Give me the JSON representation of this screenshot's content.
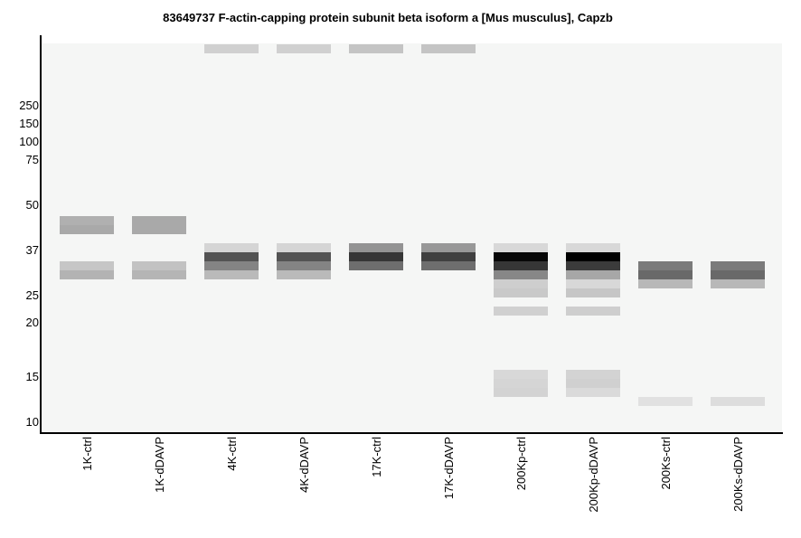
{
  "chart_data": {
    "type": "heatmap",
    "title": "83649737 F-actin-capping protein subunit beta isoform a [Mus musculus], Capzb",
    "xlabel": "",
    "ylabel": "",
    "y_ticks": [
      "250",
      "150",
      "100",
      "75",
      "50",
      "37",
      "25",
      "20",
      "15",
      "10"
    ],
    "lanes": [
      "1K-ctrl",
      "1K-dDAVP",
      "4K-ctrl",
      "4K-dDAVP",
      "17K-ctrl",
      "17K-dDAVP",
      "200Kp-ctrl",
      "200Kp-dDAVP",
      "200Ks-ctrl",
      "200Ks-dDAVP"
    ],
    "background_color": "#f5f6f5",
    "bands": [
      {
        "lane": "1K-ctrl",
        "marker": "250+",
        "intensity": 0.0
      },
      {
        "lane": "1K-ctrl",
        "marker": "~45",
        "intensity": 0.28
      },
      {
        "lane": "1K-ctrl",
        "marker": "~42",
        "intensity": 0.31
      },
      {
        "lane": "1K-ctrl",
        "marker": "~33",
        "intensity": 0.19
      },
      {
        "lane": "1K-ctrl",
        "marker": "~31",
        "intensity": 0.27
      },
      {
        "lane": "1K-dDAVP",
        "marker": "~45",
        "intensity": 0.31
      },
      {
        "lane": "1K-dDAVP",
        "marker": "~42",
        "intensity": 0.31
      },
      {
        "lane": "1K-dDAVP",
        "marker": "~33",
        "intensity": 0.21
      },
      {
        "lane": "1K-dDAVP",
        "marker": "~31",
        "intensity": 0.26
      },
      {
        "lane": "4K-ctrl",
        "marker": "top",
        "intensity": 0.15
      },
      {
        "lane": "4K-ctrl",
        "marker": "~37",
        "intensity": 0.13
      },
      {
        "lane": "4K-ctrl",
        "marker": "~35",
        "intensity": 0.66
      },
      {
        "lane": "4K-ctrl",
        "marker": "~33",
        "intensity": 0.46
      },
      {
        "lane": "4K-ctrl",
        "marker": "~31",
        "intensity": 0.24
      },
      {
        "lane": "4K-dDAVP",
        "marker": "top",
        "intensity": 0.15
      },
      {
        "lane": "4K-dDAVP",
        "marker": "~37",
        "intensity": 0.13
      },
      {
        "lane": "4K-dDAVP",
        "marker": "~35",
        "intensity": 0.66
      },
      {
        "lane": "4K-dDAVP",
        "marker": "~33",
        "intensity": 0.46
      },
      {
        "lane": "4K-dDAVP",
        "marker": "~31",
        "intensity": 0.24
      },
      {
        "lane": "17K-ctrl",
        "marker": "top",
        "intensity": 0.2
      },
      {
        "lane": "17K-ctrl",
        "marker": "~37",
        "intensity": 0.4
      },
      {
        "lane": "17K-ctrl",
        "marker": "~35",
        "intensity": 0.78
      },
      {
        "lane": "17K-ctrl",
        "marker": "~33",
        "intensity": 0.55
      },
      {
        "lane": "17K-dDAVP",
        "marker": "top",
        "intensity": 0.2
      },
      {
        "lane": "17K-dDAVP",
        "marker": "~37",
        "intensity": 0.38
      },
      {
        "lane": "17K-dDAVP",
        "marker": "~35",
        "intensity": 0.74
      },
      {
        "lane": "17K-dDAVP",
        "marker": "~33",
        "intensity": 0.55
      },
      {
        "lane": "200Kp-ctrl",
        "marker": "~37",
        "intensity": 0.12
      },
      {
        "lane": "200Kp-ctrl",
        "marker": "~35",
        "intensity": 0.97
      },
      {
        "lane": "200Kp-ctrl",
        "marker": "~33",
        "intensity": 0.78
      },
      {
        "lane": "200Kp-ctrl",
        "marker": "~31",
        "intensity": 0.45
      },
      {
        "lane": "200Kp-ctrl",
        "marker": "~29",
        "intensity": 0.16
      },
      {
        "lane": "200Kp-ctrl",
        "marker": "~27",
        "intensity": 0.18
      },
      {
        "lane": "200Kp-ctrl",
        "marker": "~22",
        "intensity": 0.15
      },
      {
        "lane": "200Kp-ctrl",
        "marker": "~15",
        "intensity": 0.12
      },
      {
        "lane": "200Kp-ctrl",
        "marker": "~14",
        "intensity": 0.13
      },
      {
        "lane": "200Kp-ctrl",
        "marker": "~13",
        "intensity": 0.14
      },
      {
        "lane": "200Kp-dDAVP",
        "marker": "~37",
        "intensity": 0.12
      },
      {
        "lane": "200Kp-dDAVP",
        "marker": "~35",
        "intensity": 1.0
      },
      {
        "lane": "200Kp-dDAVP",
        "marker": "~33",
        "intensity": 0.76
      },
      {
        "lane": "200Kp-dDAVP",
        "marker": "~31",
        "intensity": 0.32
      },
      {
        "lane": "200Kp-dDAVP",
        "marker": "~29",
        "intensity": 0.12
      },
      {
        "lane": "200Kp-dDAVP",
        "marker": "~27",
        "intensity": 0.19
      },
      {
        "lane": "200Kp-dDAVP",
        "marker": "~22",
        "intensity": 0.16
      },
      {
        "lane": "200Kp-dDAVP",
        "marker": "~15",
        "intensity": 0.14
      },
      {
        "lane": "200Kp-dDAVP",
        "marker": "~14",
        "intensity": 0.15
      },
      {
        "lane": "200Kp-dDAVP",
        "marker": "~13",
        "intensity": 0.11
      },
      {
        "lane": "200Ks-ctrl",
        "marker": "~33",
        "intensity": 0.5
      },
      {
        "lane": "200Ks-ctrl",
        "marker": "~31",
        "intensity": 0.57
      },
      {
        "lane": "200Ks-ctrl",
        "marker": "~29",
        "intensity": 0.25
      },
      {
        "lane": "200Ks-ctrl",
        "marker": "~12",
        "intensity": 0.08
      },
      {
        "lane": "200Ks-dDAVP",
        "marker": "~33",
        "intensity": 0.5
      },
      {
        "lane": "200Ks-dDAVP",
        "marker": "~31",
        "intensity": 0.57
      },
      {
        "lane": "200Ks-dDAVP",
        "marker": "~29",
        "intensity": 0.25
      },
      {
        "lane": "200Ks-dDAVP",
        "marker": "~12",
        "intensity": 0.1
      }
    ]
  }
}
